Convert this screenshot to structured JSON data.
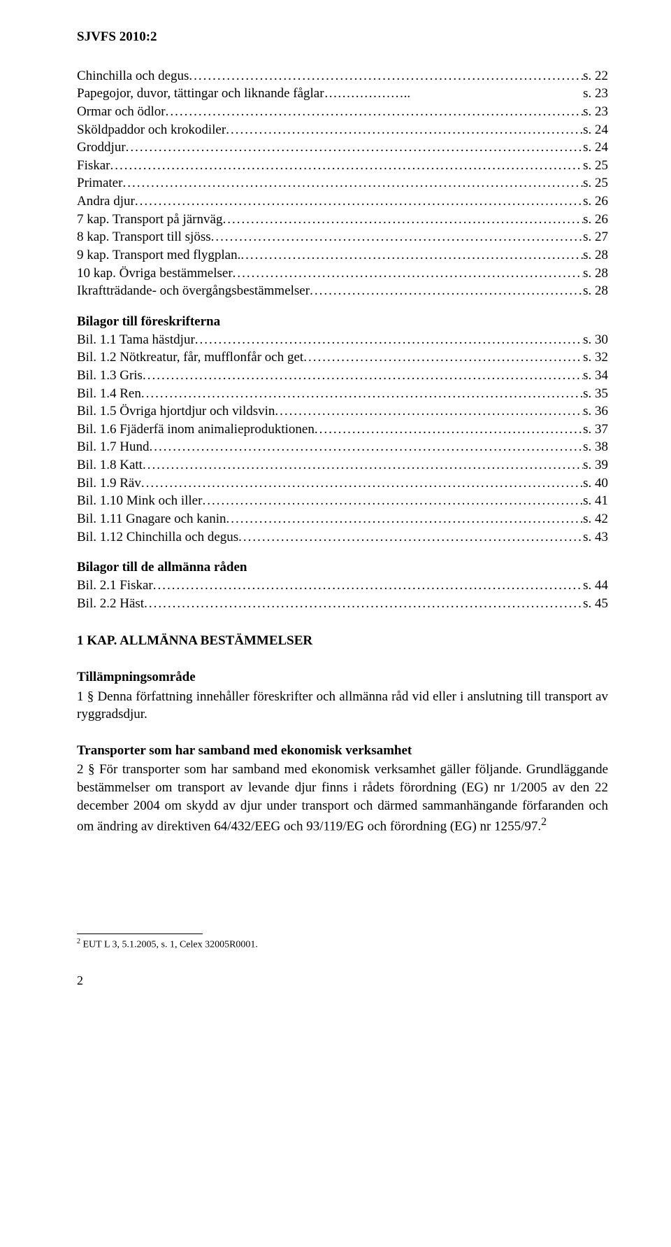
{
  "docHeader": "SJVFS 2010:2",
  "toc1": [
    {
      "label": "Chinchilla och degus",
      "fill": "nodots-ellipsis",
      "page": "s. 22"
    },
    {
      "label": "Papegojor, duvor, tättingar och liknande fåglar",
      "fill": "ellipsis",
      "page": "s. 23"
    },
    {
      "label": "Ormar och ödlor",
      "fill": "dots",
      "page": "s. 23"
    },
    {
      "label": "Sköldpaddor och krokodiler",
      "fill": "dots",
      "page": "s. 24"
    },
    {
      "label": "Groddjur",
      "fill": "dots",
      "page": "s. 24"
    },
    {
      "label": "Fiskar",
      "fill": "dots",
      "page": "s. 25"
    },
    {
      "label": "Primater",
      "fill": "dots",
      "page": "s. 25"
    },
    {
      "label": "Andra djur",
      "fill": "dots",
      "page": "s. 26"
    },
    {
      "label": "7 kap. Transport på järnväg",
      "fill": "dots",
      "page": "s. 26"
    },
    {
      "label": "8 kap. Transport till sjöss",
      "fill": "dots",
      "page": "s. 27"
    },
    {
      "label": "9 kap. Transport med flygplan.",
      "fill": "dots",
      "page": "s. 28"
    },
    {
      "label": "10 kap. Övriga bestämmelser",
      "fill": "dots",
      "page": "s. 28"
    },
    {
      "label": "Ikraftträdande- och övergångsbestämmelser",
      "fill": "dots",
      "page": "s. 28"
    }
  ],
  "toc2Title": "Bilagor till föreskrifterna",
  "toc2": [
    {
      "label": "Bil. 1.1 Tama hästdjur",
      "page": "s. 30"
    },
    {
      "label": "Bil. 1.2 Nötkreatur, får, mufflonfår och get",
      "page": "s. 32"
    },
    {
      "label": "Bil. 1.3 Gris",
      "page": "s. 34"
    },
    {
      "label": "Bil. 1.4 Ren",
      "page": "s. 35"
    },
    {
      "label": "Bil. 1.5 Övriga hjortdjur och vildsvin",
      "page": "s. 36"
    },
    {
      "label": "Bil. 1.6 Fjäderfä inom animalieproduktionen",
      "page": "s. 37"
    },
    {
      "label": "Bil. 1.7 Hund",
      "page": "s. 38"
    },
    {
      "label": "Bil. 1.8 Katt",
      "page": "s. 39"
    },
    {
      "label": "Bil. 1.9 Räv",
      "page": "s. 40"
    },
    {
      "label": "Bil. 1.10 Mink och iller",
      "page": "s. 41"
    },
    {
      "label": "Bil. 1.11 Gnagare och kanin",
      "page": "s. 42"
    },
    {
      "label": "Bil. 1.12 Chinchilla och degus",
      "page": "s. 43"
    }
  ],
  "toc3Title": "Bilagor till de allmänna råden",
  "toc3": [
    {
      "label": "Bil. 2.1 Fiskar",
      "page": "s. 44"
    },
    {
      "label": "Bil. 2.2 Häst ",
      "page": "s. 45"
    }
  ],
  "kapHeading": "1 KAP. ALLMÄNNA BESTÄMMELSER",
  "sub1": "Tillämpningsområde",
  "para1": "1 § Denna författning innehåller föreskrifter och allmänna råd vid eller i anslutning till transport av ryggradsdjur.",
  "sub2": "Transporter som har samband med ekonomisk verksamhet",
  "para2a": "2 § För transporter som har samband med ekonomisk verksamhet gäller följande. Grundläggande bestämmelser om transport av levande djur finns i rådets förordning (EG) nr 1/2005 av den 22 december 2004 om skydd av djur under transport och därmed sammanhängande förfaranden och om ändring av direktiven 64/432/EEG och 93/119/EG och förordning (EG) nr 1255/97.",
  "para2sup": "2",
  "footnote": " EUT L 3, 5.1.2005, s. 1, Celex 32005R0001.",
  "footnoteNum": "2",
  "pageNumber": "2"
}
